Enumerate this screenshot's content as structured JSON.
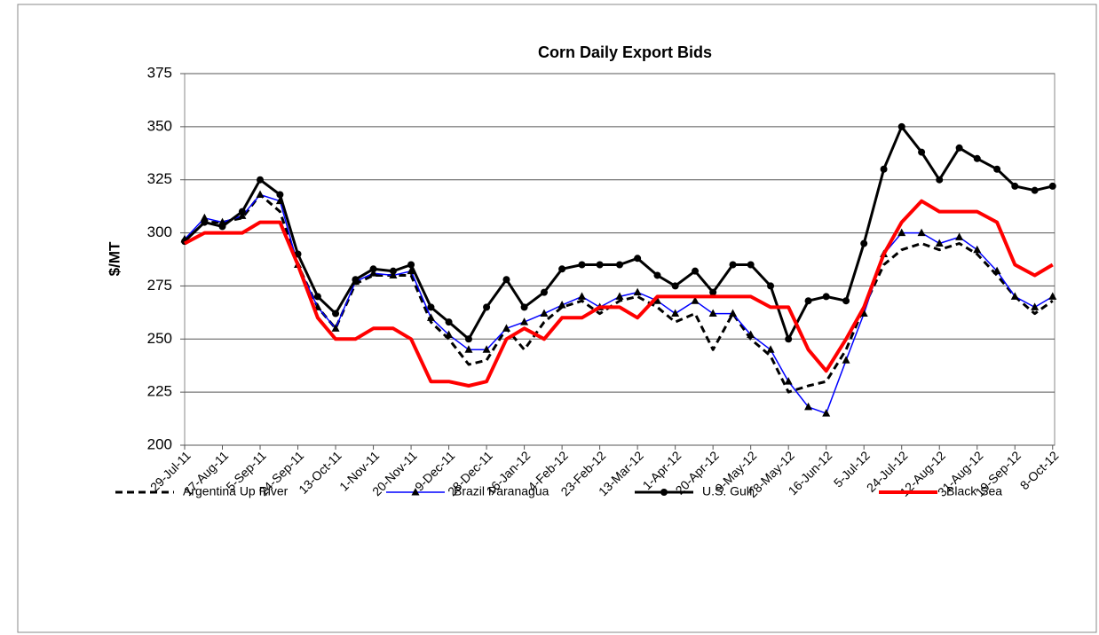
{
  "chart_data": {
    "type": "line",
    "title": "Corn Daily Export Bids",
    "y_label": "$/MT",
    "x": [
      "2011-07-29",
      "2011-08-08",
      "2011-08-17",
      "2011-08-27",
      "2011-09-05",
      "2011-09-15",
      "2011-09-24",
      "2011-10-04",
      "2011-10-13",
      "2011-10-23",
      "2011-11-01",
      "2011-11-11",
      "2011-11-20",
      "2011-11-30",
      "2011-12-09",
      "2011-12-19",
      "2011-12-28",
      "2012-01-07",
      "2012-01-16",
      "2012-01-26",
      "2012-02-04",
      "2012-02-14",
      "2012-02-23",
      "2012-03-04",
      "2012-03-13",
      "2012-03-23",
      "2012-04-01",
      "2012-04-11",
      "2012-04-20",
      "2012-04-30",
      "2012-05-09",
      "2012-05-19",
      "2012-05-28",
      "2012-06-07",
      "2012-06-16",
      "2012-06-26",
      "2012-07-05",
      "2012-07-15",
      "2012-07-24",
      "2012-08-03",
      "2012-08-12",
      "2012-08-22",
      "2012-08-31",
      "2012-09-10",
      "2012-09-19",
      "2012-09-29",
      "2012-10-08"
    ],
    "series": [
      {
        "name": "Argentina Up River",
        "color": "#000000",
        "dash": true,
        "width": 3,
        "marker": "none",
        "values": [
          296,
          305,
          305,
          307,
          318,
          310,
          285,
          265,
          255,
          276,
          280,
          280,
          280,
          258,
          250,
          238,
          240,
          255,
          245,
          258,
          265,
          268,
          262,
          268,
          270,
          265,
          258,
          262,
          245,
          262,
          250,
          242,
          225,
          228,
          230,
          245,
          265,
          285,
          292,
          295,
          292,
          295,
          290,
          280,
          270,
          262,
          268
        ]
      },
      {
        "name": "Brazil Paranagua",
        "color": "#0000ff",
        "dash": false,
        "width": 1.5,
        "marker": "triangle",
        "values": [
          297,
          307,
          305,
          308,
          318,
          315,
          285,
          265,
          255,
          277,
          281,
          280,
          282,
          260,
          252,
          245,
          245,
          255,
          258,
          262,
          266,
          270,
          265,
          270,
          272,
          268,
          262,
          268,
          262,
          262,
          252,
          245,
          230,
          218,
          215,
          240,
          262,
          290,
          300,
          300,
          295,
          298,
          292,
          282,
          270,
          265,
          270
        ]
      },
      {
        "name": "U.S. Gulf",
        "color": "#000000",
        "dash": false,
        "width": 3,
        "marker": "circle",
        "values": [
          296,
          305,
          303,
          310,
          325,
          318,
          290,
          270,
          262,
          278,
          283,
          282,
          285,
          265,
          258,
          250,
          265,
          278,
          265,
          272,
          283,
          285,
          285,
          285,
          288,
          280,
          275,
          282,
          272,
          285,
          285,
          275,
          250,
          268,
          270,
          268,
          295,
          330,
          350,
          338,
          325,
          340,
          335,
          330,
          322,
          320,
          322
        ]
      },
      {
        "name": "Black Sea",
        "color": "#ff0000",
        "dash": false,
        "width": 4,
        "marker": "none",
        "values": [
          295,
          300,
          300,
          300,
          305,
          305,
          285,
          260,
          250,
          250,
          255,
          255,
          250,
          230,
          230,
          228,
          230,
          250,
          255,
          250,
          260,
          260,
          265,
          265,
          260,
          270,
          270,
          270,
          270,
          270,
          270,
          265,
          265,
          245,
          235,
          250,
          265,
          290,
          305,
          315,
          310,
          310,
          310,
          305,
          285,
          280,
          285
        ]
      }
    ],
    "xlim": [
      "2011-07-29",
      "2012-10-09"
    ],
    "xticks": [
      {
        "value": "2011-07-29",
        "label": "29-Jul-11"
      },
      {
        "value": "2011-08-17",
        "label": "17-Aug-11"
      },
      {
        "value": "2011-09-05",
        "label": "5-Sep-11"
      },
      {
        "value": "2011-09-24",
        "label": "24-Sep-11"
      },
      {
        "value": "2011-10-13",
        "label": "13-Oct-11"
      },
      {
        "value": "2011-11-01",
        "label": "1-Nov-11"
      },
      {
        "value": "2011-11-20",
        "label": "20-Nov-11"
      },
      {
        "value": "2011-12-09",
        "label": "9-Dec-11"
      },
      {
        "value": "2011-12-28",
        "label": "28-Dec-11"
      },
      {
        "value": "2012-01-16",
        "label": "16-Jan-12"
      },
      {
        "value": "2012-02-04",
        "label": "4-Feb-12"
      },
      {
        "value": "2012-02-23",
        "label": "23-Feb-12"
      },
      {
        "value": "2012-03-13",
        "label": "13-Mar-12"
      },
      {
        "value": "2012-04-01",
        "label": "1-Apr-12"
      },
      {
        "value": "2012-04-20",
        "label": "20-Apr-12"
      },
      {
        "value": "2012-05-09",
        "label": "9-May-12"
      },
      {
        "value": "2012-05-28",
        "label": "28-May-12"
      },
      {
        "value": "2012-06-16",
        "label": "16-Jun-12"
      },
      {
        "value": "2012-07-05",
        "label": "5-Jul-12"
      },
      {
        "value": "2012-07-24",
        "label": "24-Jul-12"
      },
      {
        "value": "2012-08-12",
        "label": "12-Aug-12"
      },
      {
        "value": "2012-08-31",
        "label": "31-Aug-12"
      },
      {
        "value": "2012-09-19",
        "label": "19-Sep-12"
      },
      {
        "value": "2012-10-08",
        "label": "8-Oct-12"
      }
    ],
    "ylim": [
      200,
      375
    ],
    "yticks": [
      200,
      225,
      250,
      275,
      300,
      325,
      350,
      375
    ],
    "grid": true,
    "legend": "bottom"
  }
}
